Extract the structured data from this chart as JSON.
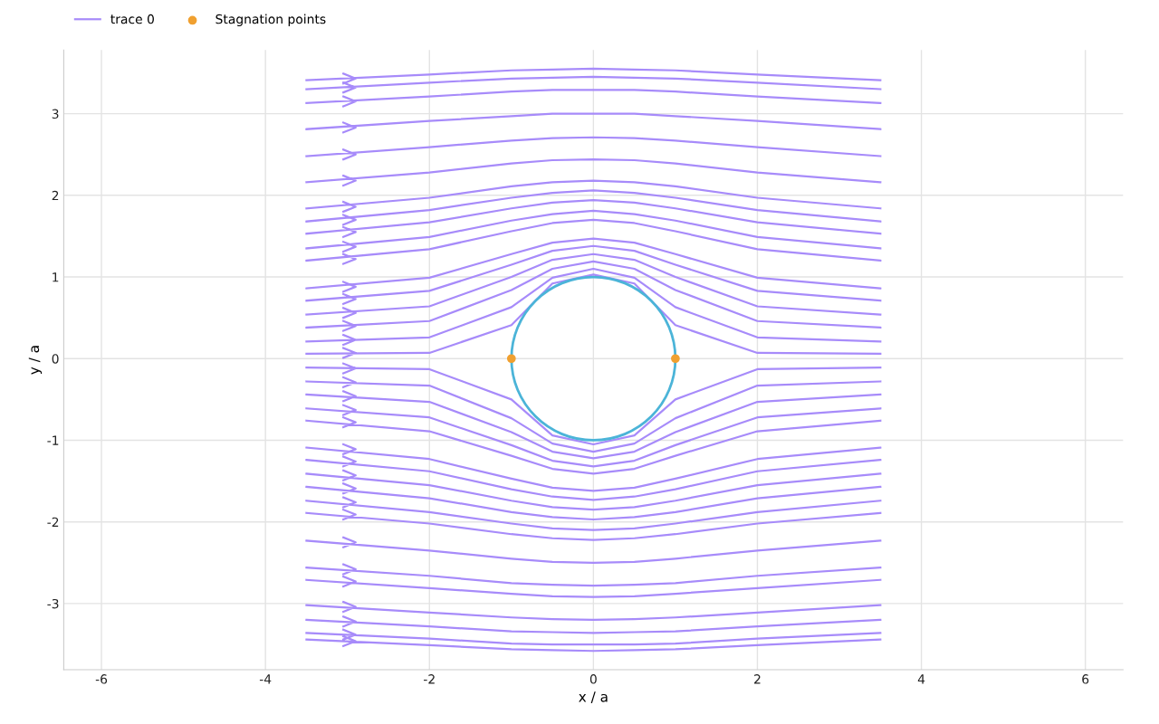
{
  "chart_data": {
    "type": "line",
    "xlabel": "x / a",
    "ylabel": "y / a",
    "xlim": [
      -6.46,
      6.46
    ],
    "ylim": [
      -3.81,
      3.78
    ],
    "xticks": [
      -6,
      -4,
      -2,
      0,
      2,
      4,
      6
    ],
    "yticks": [
      -3,
      -2,
      -1,
      0,
      1,
      2,
      3
    ],
    "grid": true,
    "legend": "top left",
    "line_style": "solid",
    "series": [
      {
        "name": "trace 0",
        "color": "#a78bfa",
        "marker": "none",
        "x": [
          -3.5,
          -2,
          -1,
          -0.5,
          0,
          0.5,
          1,
          2,
          3.5,
          null,
          -3.5,
          -2,
          -1,
          -0.5,
          0,
          0.5,
          1,
          2,
          3.5,
          null,
          -3.5,
          -2,
          -1,
          -0.5,
          0,
          0.5,
          1,
          2,
          3.5,
          null,
          -3.5,
          -2,
          -1,
          -0.5,
          0,
          0.5,
          1,
          2,
          3.5,
          null,
          -3.5,
          -2,
          -1,
          -0.5,
          0,
          0.5,
          1,
          2,
          3.5,
          null,
          -3.5,
          -2,
          -1,
          -0.5,
          0,
          0.5,
          1,
          2,
          3.5,
          null,
          -3.5,
          -2,
          -1,
          -0.5,
          0,
          0.5,
          1,
          2,
          3.5,
          null,
          -3.5,
          -2,
          -1,
          -0.5,
          0,
          0.5,
          1,
          2,
          3.5,
          null,
          -3.5,
          -2,
          -1,
          -0.5,
          0,
          0.5,
          1,
          2,
          3.5,
          null,
          -3.5,
          -2,
          -1,
          -0.5,
          0,
          0.5,
          1,
          2,
          3.5,
          null,
          -3.5,
          -2,
          -1,
          -0.5,
          0,
          0.5,
          1,
          2,
          3.5,
          null,
          -3.5,
          -2,
          -1,
          -0.5,
          0,
          0.5,
          1,
          2,
          3.5,
          null,
          -3.5,
          -2,
          -1,
          -0.5,
          0,
          0.5,
          1,
          2,
          3.5,
          null,
          -3.5,
          -2,
          -1,
          -0.5,
          0,
          0.5,
          1,
          2,
          3.5,
          null,
          -3.5,
          -2,
          -1,
          -0.5,
          0,
          0.5,
          1,
          2,
          3.5,
          null,
          -3.5,
          -2,
          -1,
          -0.5,
          0,
          0.5,
          1,
          2,
          3.5,
          null,
          -3.5,
          -2,
          -1,
          -0.5,
          0,
          0.5,
          1,
          2,
          3.5,
          null,
          -3.5,
          -2,
          -1,
          -0.5,
          0,
          0.5,
          1,
          2,
          3.5,
          null,
          -3.5,
          -2,
          -1,
          -0.5,
          0,
          0.5,
          1,
          2,
          3.5,
          null,
          -3.5,
          -2,
          -1,
          -0.5,
          0,
          0.5,
          1,
          2,
          3.5,
          null,
          -3.5,
          -2,
          -1,
          -0.5,
          0,
          0.5,
          1,
          2,
          3.5,
          null,
          -3.5,
          -2,
          -1,
          -0.5,
          0,
          0.5,
          1,
          2,
          3.5,
          null,
          -3.5,
          -2,
          -1,
          -0.5,
          0,
          0.5,
          1,
          2,
          3.5,
          null,
          -3.5,
          -2,
          -1,
          -0.5,
          0,
          0.5,
          1,
          2,
          3.5,
          null,
          -3.5,
          -2,
          -1,
          -0.5,
          0,
          0.5,
          1,
          2,
          3.5,
          null,
          -3.5,
          -2,
          -1,
          -0.5,
          0,
          0.5,
          1,
          2,
          3.5,
          null,
          -3.5,
          -2,
          -1,
          -0.5,
          0,
          0.5,
          1,
          2,
          3.5,
          null,
          -3.5,
          -2,
          -1,
          -0.5,
          0,
          0.5,
          1,
          2,
          3.5,
          null,
          -3.5,
          -2,
          -1,
          -0.5,
          0,
          0.5,
          1,
          2,
          3.5,
          null,
          -3.5,
          -2,
          -1,
          -0.5,
          0,
          0.5,
          1,
          2,
          3.5,
          null,
          -3.5,
          -2,
          -1,
          -0.5,
          0,
          0.5,
          1,
          2,
          3.5,
          null,
          -3.5,
          -2,
          -1,
          -0.5,
          0,
          0.5,
          1,
          2,
          3.5,
          null,
          -3.5,
          -2,
          -1,
          -0.5,
          0,
          0.5,
          1,
          2,
          3.5,
          null,
          -3.5,
          -2,
          -1,
          -0.5,
          0,
          0.5,
          1,
          2,
          3.5,
          null,
          -3.5,
          -2,
          -1,
          -0.5,
          0,
          0.5,
          1,
          2,
          3.5,
          null,
          -3.05,
          -2.9,
          -3.05,
          null,
          -3.05,
          -2.9,
          -3.05,
          null,
          -3.05,
          -2.9,
          -3.05,
          null,
          -3.05,
          -2.9,
          -3.05,
          null,
          -3.05,
          -2.9,
          -3.05,
          null,
          -3.05,
          -2.9,
          -3.05,
          null,
          -3.05,
          -2.9,
          -3.05,
          null,
          -3.05,
          -2.9,
          -3.05,
          null,
          -3.05,
          -2.9,
          -3.05,
          null,
          -3.05,
          -2.9,
          -3.05,
          null,
          -3.05,
          -2.9,
          -3.05,
          null,
          -3.05,
          -2.9,
          -3.05,
          null,
          -3.05,
          -2.9,
          -3.05,
          null,
          -3.05,
          -2.9,
          -3.05,
          null,
          -3.05,
          -2.9,
          -3.05,
          null,
          -3.05,
          -2.9,
          -3.05,
          null,
          -3.05,
          -2.9,
          -3.05,
          null,
          -3.05,
          -2.9,
          -3.05,
          null,
          -3.05,
          -2.9,
          -3.05,
          null,
          -3.05,
          -2.9,
          -3.05,
          null,
          -3.05,
          -2.9,
          -3.05,
          null,
          -3.05,
          -2.9,
          -3.05,
          null,
          -3.05,
          -2.9,
          -3.05,
          null,
          -3.05,
          -2.9,
          -3.05,
          null,
          -3.05,
          -2.9,
          -3.05,
          null,
          -3.05,
          -2.9,
          -3.05,
          null,
          -3.05,
          -2.9,
          -3.05,
          null,
          -3.05,
          -2.9,
          -3.05,
          null,
          -3.05,
          -2.9,
          -3.05,
          null,
          -3.05,
          -2.9,
          -3.05,
          null,
          -3.05,
          -2.9,
          -3.05,
          null,
          -3.05,
          -2.9,
          -3.05,
          null,
          -3.05,
          -2.9,
          -3.05,
          null,
          -3.05,
          -2.9,
          -3.05,
          null,
          -3.05,
          -2.9,
          -3.05
        ],
        "values": [
          3.41,
          3.48,
          3.53,
          3.54,
          3.55,
          3.54,
          3.53,
          3.48,
          3.41,
          null,
          3.3,
          3.38,
          3.43,
          3.44,
          3.45,
          3.44,
          3.43,
          3.38,
          3.3,
          null,
          3.13,
          3.21,
          3.27,
          3.29,
          3.29,
          3.29,
          3.27,
          3.21,
          3.13,
          null,
          2.81,
          2.91,
          2.97,
          3.0,
          3.0,
          3.0,
          2.97,
          2.91,
          2.81,
          null,
          2.48,
          2.59,
          2.67,
          2.7,
          2.71,
          2.7,
          2.67,
          2.59,
          2.48,
          null,
          2.16,
          2.28,
          2.39,
          2.43,
          2.44,
          2.43,
          2.39,
          2.28,
          2.16,
          null,
          1.84,
          1.97,
          2.11,
          2.16,
          2.18,
          2.16,
          2.11,
          1.97,
          1.84,
          null,
          1.68,
          1.82,
          1.97,
          2.03,
          2.06,
          2.03,
          1.97,
          1.82,
          1.68,
          null,
          1.53,
          1.67,
          1.84,
          1.91,
          1.94,
          1.91,
          1.84,
          1.67,
          1.53,
          null,
          1.35,
          1.49,
          1.69,
          1.77,
          1.81,
          1.77,
          1.69,
          1.49,
          1.35,
          null,
          1.2,
          1.34,
          1.56,
          1.66,
          1.7,
          1.66,
          1.56,
          1.34,
          1.2,
          null,
          0.86,
          0.99,
          1.28,
          1.42,
          1.47,
          1.42,
          1.28,
          0.99,
          0.86,
          null,
          0.71,
          0.83,
          1.15,
          1.32,
          1.38,
          1.32,
          1.15,
          0.83,
          0.71,
          null,
          0.54,
          0.64,
          1.0,
          1.21,
          1.28,
          1.21,
          1.0,
          0.64,
          0.54,
          null,
          0.38,
          0.46,
          0.84,
          1.1,
          1.19,
          1.1,
          0.84,
          0.46,
          0.38,
          null,
          0.21,
          0.26,
          0.63,
          0.99,
          1.1,
          0.99,
          0.63,
          0.26,
          0.21,
          null,
          0.06,
          0.07,
          0.41,
          0.92,
          1.03,
          0.92,
          0.41,
          0.07,
          0.06,
          null,
          -0.11,
          -0.13,
          -0.5,
          -0.94,
          -1.05,
          -0.94,
          -0.5,
          -0.13,
          -0.11,
          null,
          -0.28,
          -0.33,
          -0.73,
          -1.04,
          -1.14,
          -1.04,
          -0.73,
          -0.33,
          -0.28,
          null,
          -0.44,
          -0.53,
          -0.9,
          -1.14,
          -1.22,
          -1.14,
          -0.9,
          -0.53,
          -0.44,
          null,
          -0.61,
          -0.72,
          -1.06,
          -1.25,
          -1.32,
          -1.25,
          -1.06,
          -0.72,
          -0.61,
          null,
          -0.76,
          -0.89,
          -1.19,
          -1.35,
          -1.41,
          -1.35,
          -1.19,
          -0.89,
          -0.76,
          null,
          -1.09,
          -1.23,
          -1.47,
          -1.58,
          -1.62,
          -1.58,
          -1.47,
          -1.23,
          -1.09,
          null,
          -1.24,
          -1.38,
          -1.6,
          -1.69,
          -1.73,
          -1.69,
          -1.6,
          -1.38,
          -1.24,
          null,
          -1.41,
          -1.55,
          -1.74,
          -1.82,
          -1.85,
          -1.82,
          -1.74,
          -1.55,
          -1.41,
          null,
          -1.57,
          -1.71,
          -1.88,
          -1.94,
          -1.97,
          -1.94,
          -1.88,
          -1.71,
          -1.57,
          null,
          -1.74,
          -1.88,
          -2.02,
          -2.08,
          -2.1,
          -2.08,
          -2.02,
          -1.88,
          -1.74,
          null,
          -1.89,
          -2.02,
          -2.15,
          -2.2,
          -2.22,
          -2.2,
          -2.15,
          -2.02,
          -1.89,
          null,
          -2.23,
          -2.35,
          -2.45,
          -2.49,
          -2.5,
          -2.49,
          -2.45,
          -2.35,
          -2.23,
          null,
          -2.56,
          -2.66,
          -2.75,
          -2.77,
          -2.78,
          -2.77,
          -2.75,
          -2.66,
          -2.56,
          null,
          -2.71,
          -2.81,
          -2.88,
          -2.91,
          -2.92,
          -2.91,
          -2.88,
          -2.81,
          -2.71,
          null,
          -3.02,
          -3.11,
          -3.17,
          -3.19,
          -3.2,
          -3.19,
          -3.17,
          -3.11,
          -3.02,
          null,
          -3.2,
          -3.28,
          -3.34,
          -3.35,
          -3.36,
          -3.35,
          -3.34,
          -3.28,
          -3.2,
          null,
          -3.36,
          -3.43,
          -3.49,
          -3.5,
          -3.5,
          -3.5,
          -3.49,
          -3.43,
          -3.36,
          null,
          -3.44,
          -3.51,
          -3.56,
          -3.57,
          -3.58,
          -3.57,
          -3.56,
          -3.51,
          -3.44,
          null,
          3.49,
          3.43,
          3.37,
          null,
          3.38,
          3.32,
          3.26,
          null,
          3.21,
          3.15,
          3.09,
          null,
          2.89,
          2.83,
          2.77,
          null,
          2.56,
          2.5,
          2.44,
          null,
          2.24,
          2.18,
          2.12,
          null,
          1.92,
          1.86,
          1.8,
          null,
          1.76,
          1.7,
          1.64,
          null,
          1.61,
          1.55,
          1.49,
          null,
          1.43,
          1.37,
          1.31,
          null,
          1.28,
          1.22,
          1.16,
          null,
          0.94,
          0.88,
          0.82,
          null,
          0.79,
          0.73,
          0.67,
          null,
          0.62,
          0.56,
          0.5,
          null,
          0.46,
          0.4,
          0.34,
          null,
          0.29,
          0.23,
          0.17,
          null,
          0.13,
          0.07,
          0.01,
          null,
          -0.06,
          -0.12,
          -0.18,
          null,
          -0.23,
          -0.29,
          -0.35,
          null,
          -0.4,
          -0.46,
          -0.52,
          null,
          -0.57,
          -0.63,
          -0.69,
          null,
          -0.72,
          -0.78,
          -0.84,
          null,
          -1.05,
          -1.11,
          -1.17,
          null,
          -1.2,
          -1.26,
          -1.32,
          null,
          -1.37,
          -1.43,
          -1.49,
          null,
          -1.53,
          -1.59,
          -1.65,
          null,
          -1.7,
          -1.76,
          -1.82,
          null,
          -1.85,
          -1.91,
          -1.97,
          null,
          -2.19,
          -2.25,
          -2.31,
          null,
          -2.52,
          -2.58,
          -2.64,
          null,
          -2.67,
          -2.73,
          -2.79,
          null,
          -2.98,
          -3.04,
          -3.1,
          null,
          -3.16,
          -3.22,
          -3.28,
          null,
          -3.32,
          -3.38,
          -3.44,
          null,
          -3.4,
          -3.46,
          -3.52
        ]
      },
      {
        "name": "Stagnation points",
        "type": "scatter",
        "color": "#f0a030",
        "marker": "circle",
        "x": [
          -1,
          1
        ],
        "values": [
          0,
          0
        ]
      }
    ]
  }
}
